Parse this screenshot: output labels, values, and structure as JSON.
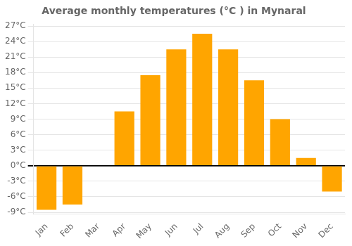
{
  "chart_data": {
    "type": "bar",
    "title": "Average monthly temperatures (°C ) in Mynaral",
    "categories": [
      "Jan",
      "Feb",
      "Mar",
      "Apr",
      "May",
      "Jun",
      "Jul",
      "Aug",
      "Sep",
      "Oct",
      "Nov",
      "Dec"
    ],
    "values": [
      -8.5,
      -7.5,
      0.0,
      10.5,
      17.5,
      22.5,
      25.5,
      22.5,
      16.5,
      9.0,
      1.5,
      -5.0
    ],
    "color": "#FFA500",
    "ylim": [
      -9.3,
      27.3
    ],
    "yticks": [
      {
        "value": -9,
        "label": "-9°C"
      },
      {
        "value": -6,
        "label": "-6°C"
      },
      {
        "value": -3,
        "label": "-3°C"
      },
      {
        "value": 0,
        "label": "0°C"
      },
      {
        "value": 3,
        "label": "3°C"
      },
      {
        "value": 6,
        "label": "6°C"
      },
      {
        "value": 9,
        "label": "9°C"
      },
      {
        "value": 12,
        "label": "12°C"
      },
      {
        "value": 15,
        "label": "15°C"
      },
      {
        "value": 18,
        "label": "18°C"
      },
      {
        "value": 21,
        "label": "21°C"
      },
      {
        "value": 24,
        "label": "24°C"
      },
      {
        "value": 27,
        "label": "27°C"
      }
    ],
    "grid": true
  }
}
